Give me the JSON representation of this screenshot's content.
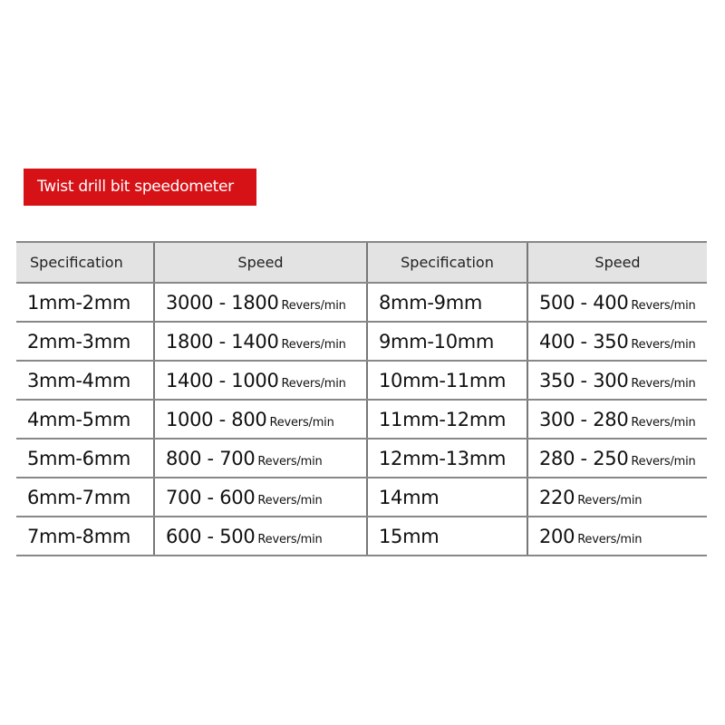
{
  "title": "Twist drill bit speedometer",
  "headers": [
    "Specification",
    "Speed",
    "Specification",
    "Speed"
  ],
  "unit": "Revers/min",
  "rows": [
    {
      "spec1": "1mm-2mm",
      "speed1": "3000 - 1800",
      "spec2": "8mm-9mm",
      "speed2": "500 - 400"
    },
    {
      "spec1": "2mm-3mm",
      "speed1": "1800 - 1400",
      "spec2": "9mm-10mm",
      "speed2": "400 - 350"
    },
    {
      "spec1": "3mm-4mm",
      "speed1": "1400 - 1000",
      "spec2": "10mm-11mm",
      "speed2": "350 - 300"
    },
    {
      "spec1": "4mm-5mm",
      "speed1": "1000 - 800",
      "spec2": "11mm-12mm",
      "speed2": "300 - 280"
    },
    {
      "spec1": "5mm-6mm",
      "speed1": "800 - 700",
      "spec2": "12mm-13mm",
      "speed2": "280 - 250"
    },
    {
      "spec1": "6mm-7mm",
      "speed1": "700 - 600",
      "spec2": "14mm",
      "speed2": "220"
    },
    {
      "spec1": "7mm-8mm",
      "speed1": "600 - 500",
      "spec2": "15mm",
      "speed2": "200"
    }
  ],
  "colors": {
    "title_bg": "#d71217",
    "header_bg": "#e3e3e3"
  }
}
